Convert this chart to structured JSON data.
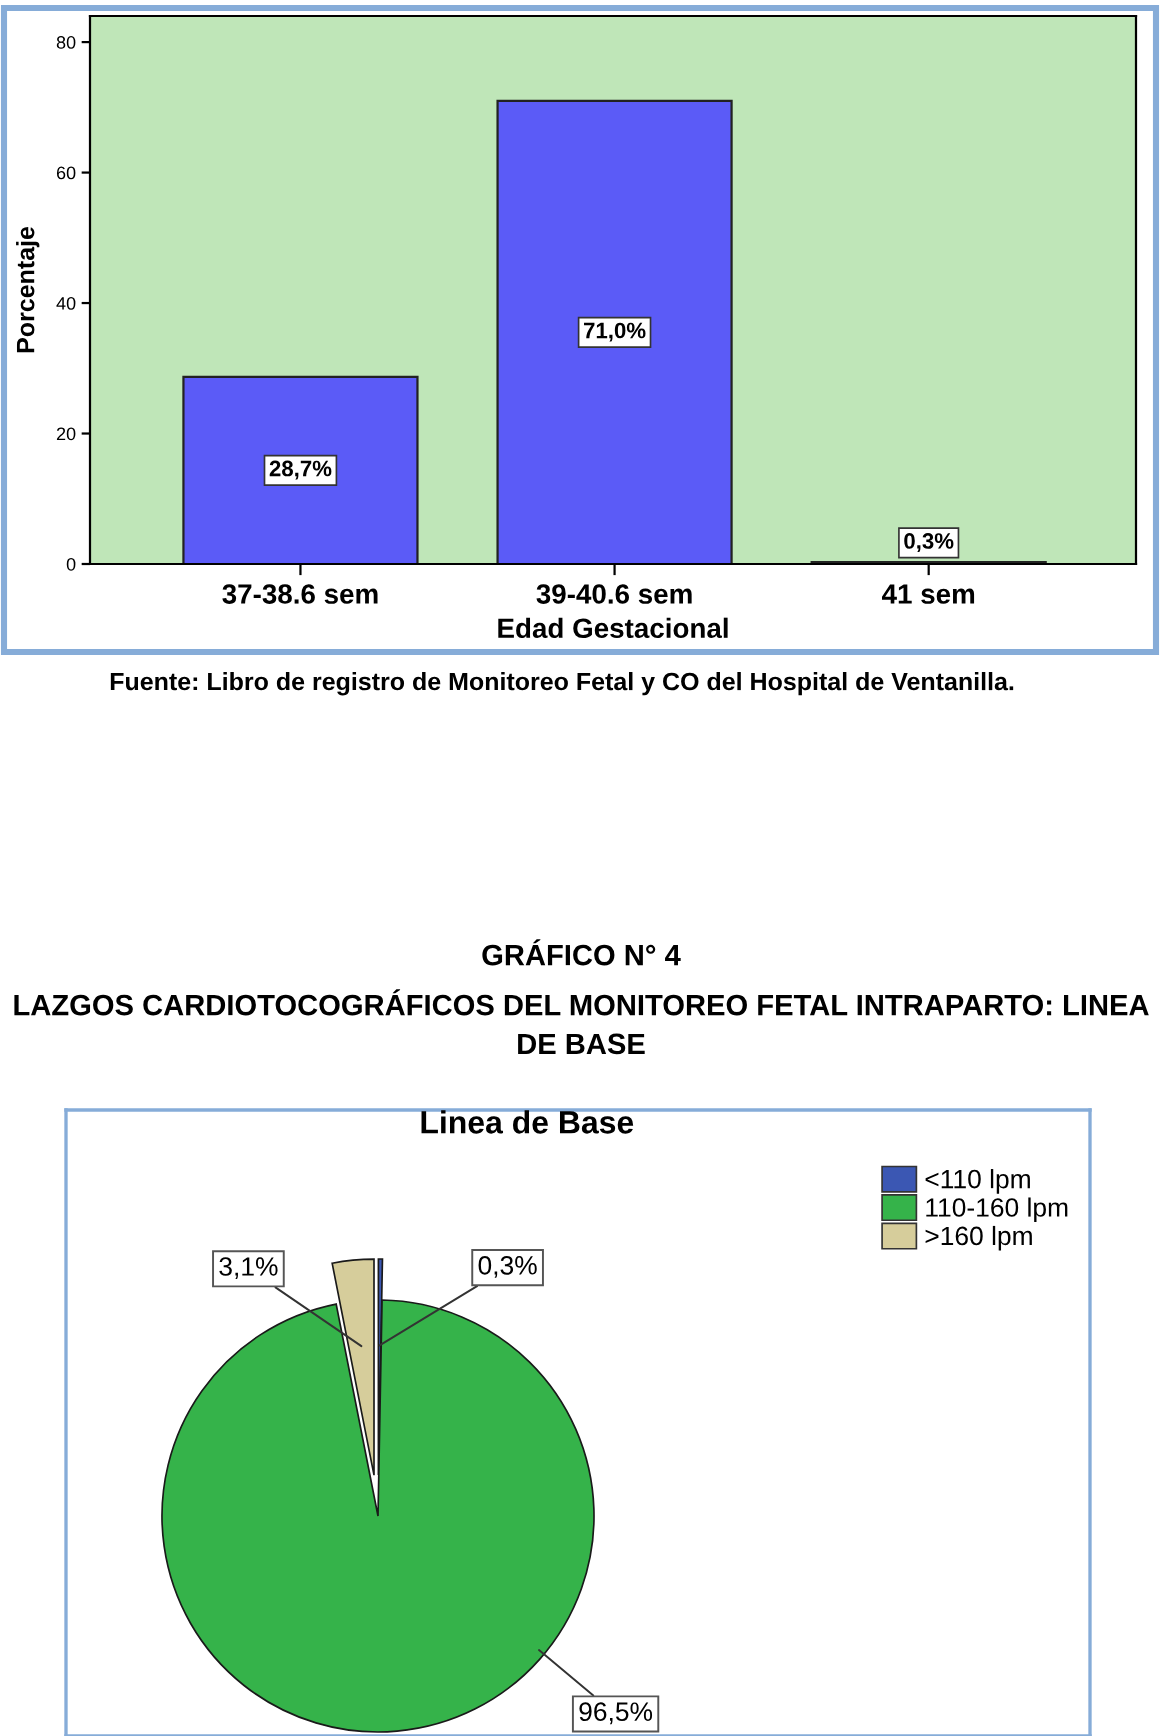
{
  "chart_data": [
    {
      "type": "bar",
      "categories": [
        "37-38.6 sem",
        "39-40.6 sem",
        "41 sem"
      ],
      "values": [
        28.7,
        71.0,
        0.3
      ],
      "color": "#5b5bf7",
      "value_labels": [
        "28,7%",
        "71,0%",
        "0,3%"
      ],
      "xlabel": "Edad Gestacional",
      "ylabel": "Porcentaje",
      "ylim": [
        0,
        84
      ],
      "yticks": [
        0,
        20,
        40,
        60,
        80
      ],
      "annotations": [
        "Fuente: Libro de registro de Monitoreo Fetal y CO del Hospital de Ventanilla."
      ]
    },
    {
      "type": "pie",
      "title": "Linea de Base",
      "categories": [
        "<110 lpm",
        "110-160 lpm",
        ">160 lpm"
      ],
      "values": [
        0.3,
        96.5,
        3.1
      ],
      "colors": [
        "#3b57b3",
        "#35b34a",
        "#d6cd9b"
      ],
      "value_labels": [
        "0,3%",
        "96,5%",
        "3,1%"
      ],
      "legend": "top right",
      "annotations": [
        "GRÁFICO N° 4",
        "LAZGOS CARDIOTOCOGRÁFICOS DEL MONITOREO FETAL INTRAPARTO: LINEA DE BASE"
      ]
    }
  ]
}
